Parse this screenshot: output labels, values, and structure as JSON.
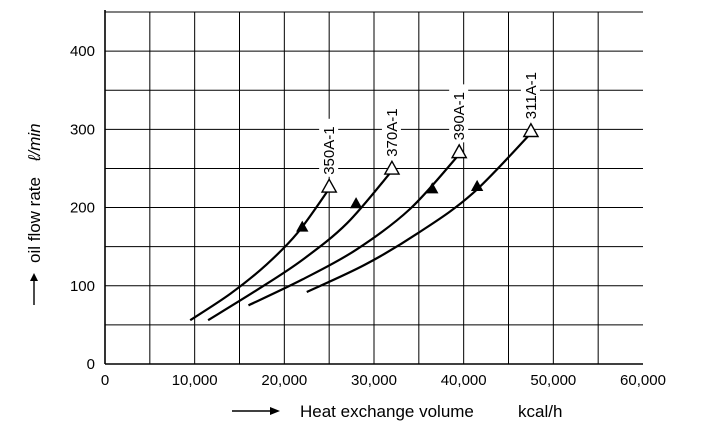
{
  "chart_data": {
    "type": "line",
    "title": "",
    "xlabel": "Heat exchange volume",
    "xunit": "kcal/h",
    "ylabel": "oil flow rate",
    "yunit": "ℓ/min",
    "xlim": [
      0,
      60000
    ],
    "ylim": [
      0,
      450
    ],
    "x_ticks": [
      0,
      10000,
      20000,
      30000,
      40000,
      50000,
      60000
    ],
    "x_tick_labels": [
      "0",
      "10,000",
      "20,000",
      "30,000",
      "40,000",
      "50,000",
      "60,000"
    ],
    "y_ticks": [
      0,
      100,
      200,
      300,
      400
    ],
    "y_tick_labels": [
      "0",
      "100",
      "200",
      "300",
      "400"
    ],
    "x_grid_step": 5000,
    "y_grid_step": 50,
    "grid": true,
    "series": [
      {
        "name": "350A-1",
        "x": [
          9500,
          14000,
          18000,
          21500,
          25000
        ],
        "y": [
          56,
          90,
          127,
          168,
          224
        ],
        "end_marker": "open-triangle",
        "mid_marker": {
          "x": 22000,
          "y": 175
        }
      },
      {
        "name": "370A-1",
        "x": [
          11500,
          17000,
          22000,
          27000,
          32000
        ],
        "y": [
          56,
          95,
          133,
          180,
          247
        ],
        "end_marker": "open-triangle",
        "mid_marker": {
          "x": 28000,
          "y": 205
        }
      },
      {
        "name": "390A-1",
        "x": [
          16000,
          22000,
          28000,
          34000,
          39500
        ],
        "y": [
          75,
          108,
          146,
          198,
          268
        ],
        "end_marker": "open-triangle",
        "mid_marker": {
          "x": 36500,
          "y": 224
        }
      },
      {
        "name": "311A-1",
        "x": [
          22500,
          29000,
          35000,
          41000,
          47500
        ],
        "y": [
          92,
          127,
          168,
          218,
          295
        ],
        "end_marker": "open-triangle",
        "mid_marker": {
          "x": 41500,
          "y": 227
        }
      }
    ]
  }
}
